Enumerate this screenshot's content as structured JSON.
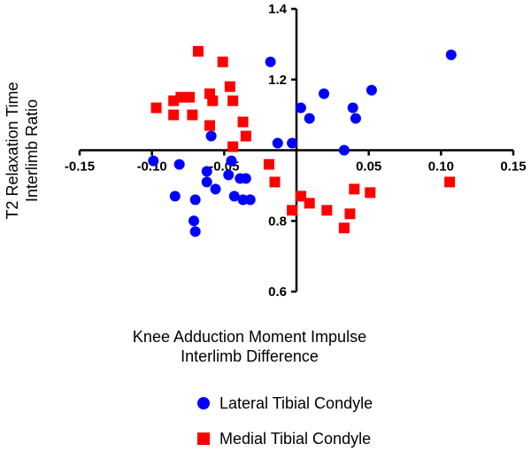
{
  "chart_data": {
    "type": "scatter",
    "xlabel": [
      "Knee Adduction Moment Impulse",
      "Interlimb Difference"
    ],
    "ylabel": [
      "T2 Relaxation Time",
      "Interlimb Ratio"
    ],
    "xlim": [
      -0.15,
      0.15
    ],
    "ylim": [
      0.6,
      1.4
    ],
    "x_ticks": [
      -0.15,
      -0.1,
      -0.05,
      0.05,
      0.1,
      0.15
    ],
    "x_tick_labels": [
      "-0.15",
      "-0.10",
      "-0.05",
      "0.05",
      "0.10",
      "0.15"
    ],
    "y_ticks": [
      0.6,
      0.8,
      1.2,
      1.4
    ],
    "y_tick_labels": [
      "0.6",
      "0.8",
      "1.2",
      "1.4"
    ],
    "axis_crossing": {
      "x": 0,
      "y": 1.0
    },
    "grid": false,
    "legend_position": "bottom",
    "series": [
      {
        "name": "Lateral Tibial Condyle",
        "marker": "circle",
        "color": "#0000FF",
        "points": [
          [
            -0.099,
            0.97
          ],
          [
            -0.081,
            0.96
          ],
          [
            -0.084,
            0.87
          ],
          [
            -0.07,
            0.86
          ],
          [
            -0.062,
            0.94
          ],
          [
            -0.062,
            0.91
          ],
          [
            -0.056,
            0.89
          ],
          [
            -0.047,
            0.93
          ],
          [
            -0.045,
            0.97
          ],
          [
            -0.043,
            0.87
          ],
          [
            -0.039,
            0.92
          ],
          [
            -0.037,
            0.86
          ],
          [
            -0.032,
            0.86
          ],
          [
            -0.035,
            0.92
          ],
          [
            -0.071,
            0.8
          ],
          [
            -0.07,
            0.77
          ],
          [
            -0.059,
            1.04
          ],
          [
            -0.018,
            1.25
          ],
          [
            -0.013,
            1.02
          ],
          [
            -0.003,
            1.02
          ],
          [
            0.003,
            1.12
          ],
          [
            0.009,
            1.09
          ],
          [
            0.019,
            1.16
          ],
          [
            0.033,
            1.0
          ],
          [
            0.039,
            1.12
          ],
          [
            0.041,
            1.09
          ],
          [
            0.052,
            1.17
          ],
          [
            0.107,
            1.27
          ]
        ]
      },
      {
        "name": "Medial Tibial Condyle",
        "marker": "square",
        "color": "#FF0000",
        "points": [
          [
            -0.097,
            1.12
          ],
          [
            -0.085,
            1.14
          ],
          [
            -0.08,
            1.15
          ],
          [
            -0.085,
            1.1
          ],
          [
            -0.074,
            1.15
          ],
          [
            -0.072,
            1.1
          ],
          [
            -0.068,
            1.28
          ],
          [
            -0.06,
            1.16
          ],
          [
            -0.058,
            1.14
          ],
          [
            -0.06,
            1.07
          ],
          [
            -0.051,
            1.25
          ],
          [
            -0.046,
            1.18
          ],
          [
            -0.044,
            1.14
          ],
          [
            -0.037,
            1.08
          ],
          [
            -0.035,
            1.04
          ],
          [
            -0.044,
            1.01
          ],
          [
            -0.019,
            0.96
          ],
          [
            -0.015,
            0.91
          ],
          [
            -0.003,
            0.83
          ],
          [
            0.003,
            0.87
          ],
          [
            0.009,
            0.85
          ],
          [
            0.021,
            0.83
          ],
          [
            0.033,
            0.78
          ],
          [
            0.037,
            0.82
          ],
          [
            0.04,
            0.89
          ],
          [
            0.051,
            0.88
          ],
          [
            0.106,
            0.91
          ]
        ]
      }
    ]
  }
}
